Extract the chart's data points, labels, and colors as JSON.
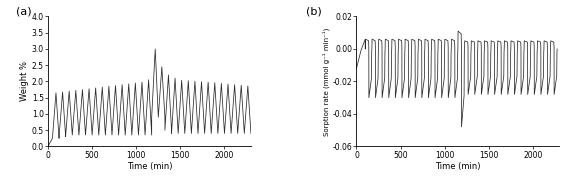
{
  "fig_width": 5.65,
  "fig_height": 1.83,
  "dpi": 100,
  "panel_a": {
    "label": "(a)",
    "xlabel": "Time (min)",
    "ylabel": "Weight %",
    "xlim": [
      0,
      2300
    ],
    "ylim": [
      0.0,
      4.0
    ],
    "yticks": [
      0.0,
      0.5,
      1.0,
      1.5,
      2.0,
      2.5,
      3.0,
      3.5,
      4.0
    ],
    "xticks": [
      0,
      500,
      1000,
      1500,
      2000
    ],
    "line_color": "#2a2a2a",
    "line_width": 0.55
  },
  "panel_b": {
    "label": "(b)",
    "xlabel": "Time (min)",
    "ylabel": "Sorption rate (mmol g⁻¹ min⁻¹)",
    "xlim": [
      0,
      2300
    ],
    "ylim": [
      -0.06,
      0.02
    ],
    "yticks": [
      -0.06,
      -0.04,
      -0.02,
      0.0,
      0.02
    ],
    "xticks": [
      0,
      500,
      1000,
      1500,
      2000
    ],
    "line_color": "#2a2a2a",
    "line_width": 0.55
  }
}
